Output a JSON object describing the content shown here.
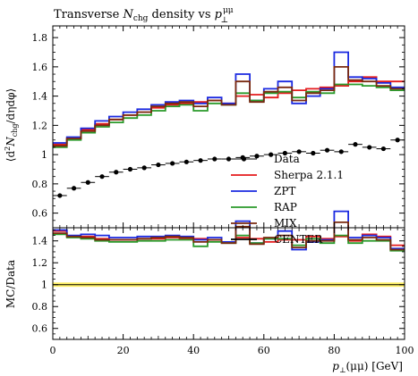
{
  "chart_data": {
    "type": "line",
    "title": "Transverse N_chg density vs p_⊥^μμ",
    "title_parts": {
      "a": "Transverse ",
      "b": "N",
      "c": "chg",
      "d": " density vs ",
      "e": "p",
      "f": "μμ",
      "g": "⊥"
    },
    "xlabel": "p_⊥(μμ) [GeV]",
    "xlabel_parts": {
      "a": "p",
      "b": "⊥",
      "c": "(μμ) [GeV]"
    },
    "ylabel": "⟨d²N_chg/dηdφ⟩",
    "ylabel_parts": {
      "a": "⟨d",
      "b": "2",
      "c": "N",
      "d": "chg",
      "e": "/dηdφ⟩"
    },
    "ratio_ylabel": "MC/Data",
    "xlim": [
      0,
      100
    ],
    "ylim": [
      0.5,
      1.88
    ],
    "ratio_ylim": [
      0.5,
      1.52
    ],
    "xticks": [
      0,
      20,
      40,
      60,
      80,
      100
    ],
    "xtick_labels": [
      "0",
      "20",
      "40",
      "60",
      "80",
      "100"
    ],
    "yticks": [
      0.6,
      0.8,
      1,
      1.2,
      1.4,
      1.6,
      1.8
    ],
    "ytick_labels": [
      "0.6",
      "0.8",
      "1",
      "1.2",
      "1.4",
      "1.6",
      "1.8"
    ],
    "ratio_yticks": [
      0.6,
      0.8,
      1,
      1.2,
      1.4
    ],
    "ratio_ytick_labels": [
      "0.6",
      "0.8",
      "1",
      "1.2",
      "1.4"
    ],
    "legend_position": "lower-right",
    "bin_edges": [
      0,
      4,
      8,
      12,
      16,
      20,
      24,
      28,
      32,
      36,
      40,
      44,
      48,
      52,
      56,
      60,
      64,
      68,
      72,
      76,
      80,
      84,
      88,
      92,
      96,
      100
    ],
    "data": {
      "name": "Data",
      "color": "#000000",
      "x": [
        2,
        6,
        10,
        14,
        18,
        22,
        26,
        30,
        34,
        38,
        42,
        46,
        50,
        54,
        58,
        62,
        66,
        70,
        74,
        78,
        82,
        86,
        90,
        94,
        98
      ],
      "y": [
        0.72,
        0.77,
        0.81,
        0.85,
        0.88,
        0.9,
        0.91,
        0.93,
        0.94,
        0.95,
        0.96,
        0.97,
        0.97,
        0.98,
        0.99,
        1.0,
        1.01,
        1.02,
        1.01,
        1.03,
        1.02,
        1.07,
        1.05,
        1.04,
        1.1
      ],
      "band_color": "#ffee55"
    },
    "series": [
      {
        "name": "Sherpa 2.1.1",
        "color": "#e41a1c",
        "values": [
          1.07,
          1.11,
          1.17,
          1.21,
          1.24,
          1.27,
          1.29,
          1.32,
          1.34,
          1.35,
          1.36,
          1.37,
          1.35,
          1.4,
          1.41,
          1.39,
          1.42,
          1.44,
          1.45,
          1.46,
          1.47,
          1.5,
          1.53,
          1.5,
          1.5
        ],
        "ratio": [
          1.49,
          1.44,
          1.44,
          1.42,
          1.41,
          1.41,
          1.42,
          1.42,
          1.43,
          1.42,
          1.42,
          1.41,
          1.39,
          1.43,
          1.42,
          1.39,
          1.41,
          1.41,
          1.44,
          1.42,
          1.44,
          1.4,
          1.46,
          1.44,
          1.36
        ]
      },
      {
        "name": "ZPT",
        "color": "#1a29e0",
        "values": [
          1.08,
          1.12,
          1.18,
          1.23,
          1.26,
          1.29,
          1.31,
          1.34,
          1.36,
          1.37,
          1.35,
          1.39,
          1.35,
          1.55,
          1.37,
          1.45,
          1.5,
          1.35,
          1.4,
          1.45,
          1.7,
          1.53,
          1.52,
          1.49,
          1.46
        ],
        "ratio": [
          1.5,
          1.45,
          1.46,
          1.45,
          1.43,
          1.43,
          1.44,
          1.44,
          1.45,
          1.44,
          1.41,
          1.43,
          1.39,
          1.58,
          1.38,
          1.42,
          1.49,
          1.32,
          1.39,
          1.41,
          1.67,
          1.43,
          1.45,
          1.43,
          1.33
        ]
      },
      {
        "name": "RAP",
        "color": "#2a9a2a",
        "values": [
          1.05,
          1.1,
          1.15,
          1.19,
          1.22,
          1.25,
          1.27,
          1.3,
          1.33,
          1.34,
          1.3,
          1.35,
          1.34,
          1.42,
          1.37,
          1.42,
          1.43,
          1.39,
          1.43,
          1.42,
          1.48,
          1.48,
          1.47,
          1.46,
          1.44
        ],
        "ratio": [
          1.46,
          1.43,
          1.42,
          1.4,
          1.39,
          1.39,
          1.4,
          1.4,
          1.41,
          1.41,
          1.35,
          1.39,
          1.38,
          1.45,
          1.38,
          1.42,
          1.42,
          1.36,
          1.42,
          1.38,
          1.45,
          1.38,
          1.4,
          1.4,
          1.31
        ]
      },
      {
        "name": "MIX",
        "color": "#7a2a10",
        "values": [
          1.06,
          1.11,
          1.16,
          1.2,
          1.24,
          1.27,
          1.29,
          1.33,
          1.35,
          1.36,
          1.33,
          1.37,
          1.34,
          1.5,
          1.36,
          1.43,
          1.46,
          1.37,
          1.42,
          1.44,
          1.6,
          1.51,
          1.5,
          1.47,
          1.45
        ],
        "ratio": [
          1.47,
          1.44,
          1.43,
          1.41,
          1.41,
          1.41,
          1.42,
          1.43,
          1.44,
          1.43,
          1.39,
          1.41,
          1.38,
          1.53,
          1.37,
          1.43,
          1.45,
          1.34,
          1.4,
          1.4,
          1.57,
          1.41,
          1.43,
          1.41,
          1.32
        ]
      },
      {
        "name": "CENTER",
        "color": "#000000",
        "values": [],
        "ratio": []
      }
    ]
  }
}
